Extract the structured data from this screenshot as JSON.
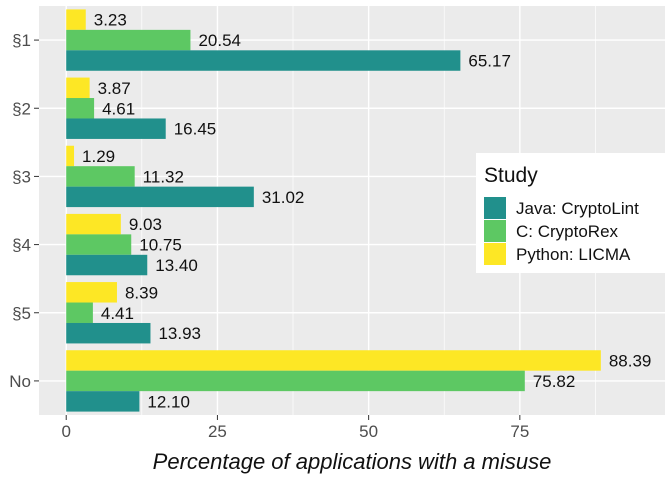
{
  "chart_data": {
    "type": "bar",
    "orientation": "horizontal",
    "categories": [
      "§1",
      "§2",
      "§3",
      "§4",
      "§5",
      "No"
    ],
    "series": [
      {
        "name": "Java: CryptoLint",
        "color": "#21908C",
        "values": [
          65.17,
          16.45,
          31.02,
          13.4,
          13.93,
          12.1
        ],
        "labels": [
          "65.17",
          "16.45",
          "31.02",
          "13.40",
          "13.93",
          "12.10"
        ]
      },
      {
        "name": "C: CryptoRex",
        "color": "#5DC863",
        "values": [
          20.54,
          4.61,
          11.32,
          10.75,
          4.41,
          75.82
        ],
        "labels": [
          "20.54",
          "4.61",
          "11.32",
          "10.75",
          "4.41",
          "75.82"
        ]
      },
      {
        "name": "Python: LICMA",
        "color": "#FDE725",
        "values": [
          3.23,
          3.87,
          1.29,
          9.03,
          8.39,
          88.39
        ],
        "labels": [
          "3.23",
          "3.87",
          "1.29",
          "9.03",
          "8.39",
          "88.39"
        ]
      }
    ],
    "xlabel": "Percentage of applications with a misuse",
    "ylabel": "",
    "xlim": [
      -4.5,
      99
    ],
    "xticks": [
      0,
      25,
      50,
      75
    ],
    "xtick_labels": [
      "0",
      "25",
      "50",
      "75"
    ],
    "legend": {
      "title": "Study",
      "position": "right"
    },
    "grid": true,
    "panel_background": "#EBEBEB",
    "gridline_color": "#FFFFFF"
  }
}
